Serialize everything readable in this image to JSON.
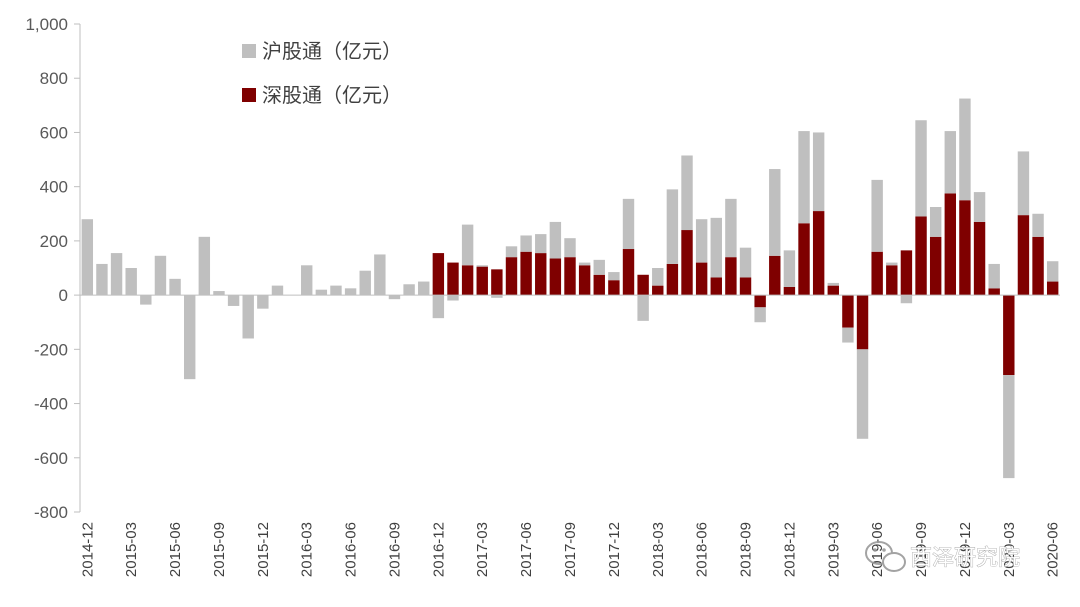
{
  "chart_data": {
    "type": "bar",
    "stacked": true,
    "colors": {
      "sh": "#bfbfbf",
      "sz": "#7f0000"
    },
    "ylim": [
      -800,
      1000
    ],
    "yticks": [
      -800,
      -600,
      -400,
      -200,
      0,
      200,
      400,
      600,
      800,
      1000
    ],
    "ytick_labels": [
      "-800",
      "-600",
      "-400",
      "-200",
      "0",
      "200",
      "400",
      "600",
      "800",
      "1,000"
    ],
    "xtick_labels": [
      "2014-12",
      "2015-03",
      "2015-06",
      "2015-09",
      "2015-12",
      "2016-03",
      "2016-06",
      "2016-09",
      "2016-12",
      "2017-03",
      "2017-06",
      "2017-09",
      "2017-12",
      "2018-03",
      "2018-06",
      "2018-09",
      "2018-12",
      "2019-03",
      "2019-06",
      "2019-09",
      "2019-12",
      "2020-03",
      "2020-06"
    ],
    "legend": {
      "position": "top-left"
    },
    "categories": [
      "2014-12",
      "2015-01",
      "2015-02",
      "2015-03",
      "2015-04",
      "2015-05",
      "2015-06",
      "2015-07",
      "2015-08",
      "2015-09",
      "2015-10",
      "2015-11",
      "2015-12",
      "2016-01",
      "2016-02",
      "2016-03",
      "2016-04",
      "2016-05",
      "2016-06",
      "2016-07",
      "2016-08",
      "2016-09",
      "2016-10",
      "2016-11",
      "2016-12",
      "2017-01",
      "2017-02",
      "2017-03",
      "2017-04",
      "2017-05",
      "2017-06",
      "2017-07",
      "2017-08",
      "2017-09",
      "2017-10",
      "2017-11",
      "2017-12",
      "2018-01",
      "2018-02",
      "2018-03",
      "2018-04",
      "2018-05",
      "2018-06",
      "2018-07",
      "2018-08",
      "2018-09",
      "2018-10",
      "2018-11",
      "2018-12",
      "2019-01",
      "2019-02",
      "2019-03",
      "2019-04",
      "2019-05",
      "2019-06",
      "2019-07",
      "2019-08",
      "2019-09",
      "2019-10",
      "2019-11",
      "2019-12",
      "2020-01",
      "2020-02",
      "2020-03",
      "2020-04",
      "2020-05",
      "2020-06"
    ],
    "series": [
      {
        "name": "沪股通（亿元）",
        "key": "sh",
        "values": [
          280,
          115,
          155,
          100,
          -35,
          145,
          60,
          -310,
          215,
          15,
          -40,
          -160,
          -50,
          35,
          0,
          110,
          20,
          35,
          25,
          90,
          150,
          -15,
          40,
          50,
          -85,
          -20,
          150,
          5,
          -10,
          40,
          60,
          70,
          135,
          70,
          10,
          55,
          30,
          185,
          -95,
          65,
          275,
          275,
          160,
          220,
          215,
          110,
          -55,
          320,
          135,
          340,
          290,
          10,
          -55,
          -330,
          265,
          10,
          -30,
          355,
          110,
          230,
          375,
          110,
          90,
          -380,
          235,
          85,
          75
        ]
      },
      {
        "name": "深股通（亿元）",
        "key": "sz",
        "values": [
          0,
          0,
          0,
          0,
          0,
          0,
          0,
          0,
          0,
          0,
          0,
          0,
          0,
          0,
          0,
          0,
          0,
          0,
          0,
          0,
          0,
          0,
          0,
          0,
          155,
          120,
          110,
          105,
          95,
          140,
          160,
          155,
          135,
          140,
          110,
          75,
          55,
          170,
          75,
          35,
          115,
          240,
          120,
          65,
          140,
          65,
          -45,
          145,
          30,
          265,
          310,
          35,
          -120,
          -200,
          160,
          110,
          165,
          290,
          215,
          375,
          350,
          270,
          25,
          -295,
          295,
          215,
          50
        ]
      }
    ]
  },
  "watermark": {
    "text": "西泽研究院"
  }
}
